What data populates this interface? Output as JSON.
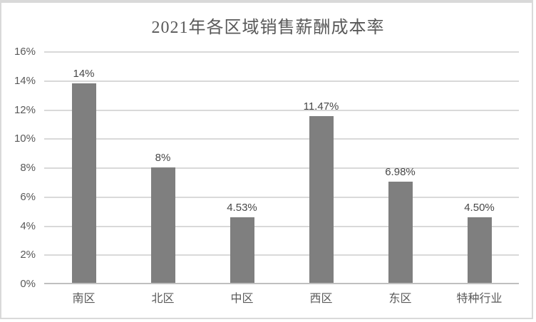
{
  "title": "2021年各区域销售薪酬成本率",
  "colors": {
    "bar": "#7f7f7f",
    "gridline": "#d9d9d9",
    "axis_line": "#bfbfbf",
    "frame_border": "#d9d9d9",
    "title_text": "#595959",
    "tick_text": "#595959",
    "category_text": "#595959",
    "data_label_text": "#474747",
    "background": "#ffffff"
  },
  "chart_data": {
    "type": "bar",
    "title": "2021年各区域销售薪酬成本率",
    "categories": [
      "南区",
      "北区",
      "中区",
      "西区",
      "东区",
      "特种行业"
    ],
    "values": [
      13.75,
      7.95,
      4.53,
      11.47,
      6.98,
      4.5
    ],
    "data_labels": [
      "14%",
      "8%",
      "4.53%",
      "11.47%",
      "6.98%",
      "4.50%"
    ],
    "xlabel": "",
    "ylabel": "",
    "ylim": [
      0,
      16
    ],
    "ytick_step": 2,
    "ytick_labels": [
      "0%",
      "2%",
      "4%",
      "6%",
      "8%",
      "10%",
      "12%",
      "14%",
      "16%"
    ],
    "grid": "horizontal",
    "legend": "none"
  },
  "layout_note": "single gray column chart, Excel style"
}
